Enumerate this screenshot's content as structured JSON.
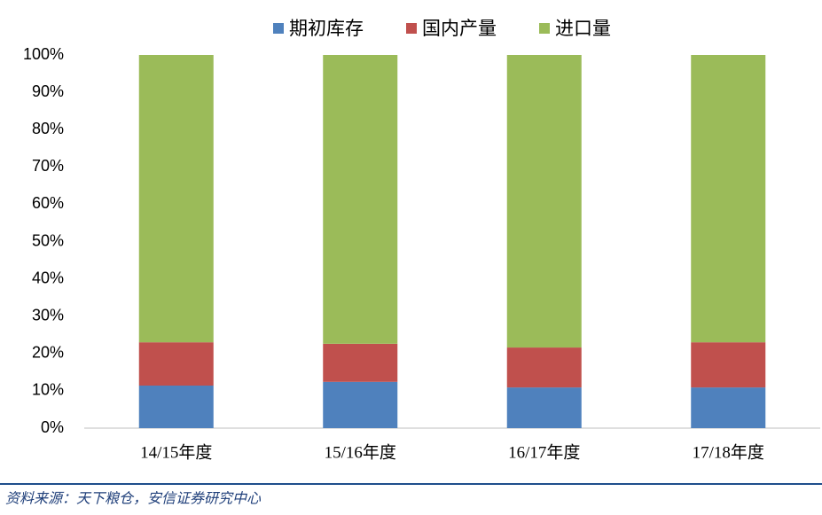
{
  "chart_data": {
    "type": "stacked_bar_100",
    "categories": [
      "14/15年度",
      "15/16年度",
      "16/17年度",
      "17/18年度"
    ],
    "series": [
      {
        "name": "期初库存",
        "color": "#4f81bd",
        "values": [
          11.4,
          12.4,
          10.9,
          10.9
        ]
      },
      {
        "name": "国内产量",
        "color": "#c0504d",
        "values": [
          11.6,
          10.2,
          10.7,
          12.1
        ]
      },
      {
        "name": "进口量",
        "color": "#9bbb59",
        "values": [
          77.0,
          77.4,
          78.4,
          77.0
        ]
      }
    ],
    "ylim": [
      0,
      100
    ],
    "yticks": [
      {
        "value": 0,
        "label": "0%"
      },
      {
        "value": 10,
        "label": "10%"
      },
      {
        "value": 20,
        "label": "20%"
      },
      {
        "value": 30,
        "label": "30%"
      },
      {
        "value": 40,
        "label": "40%"
      },
      {
        "value": 50,
        "label": "50%"
      },
      {
        "value": 60,
        "label": "60%"
      },
      {
        "value": 70,
        "label": "70%"
      },
      {
        "value": 80,
        "label": "80%"
      },
      {
        "value": 90,
        "label": "90%"
      },
      {
        "value": 100,
        "label": "100%"
      }
    ],
    "legend": "top",
    "source": "资料来源：天下粮仓，安信证券研究中心"
  }
}
